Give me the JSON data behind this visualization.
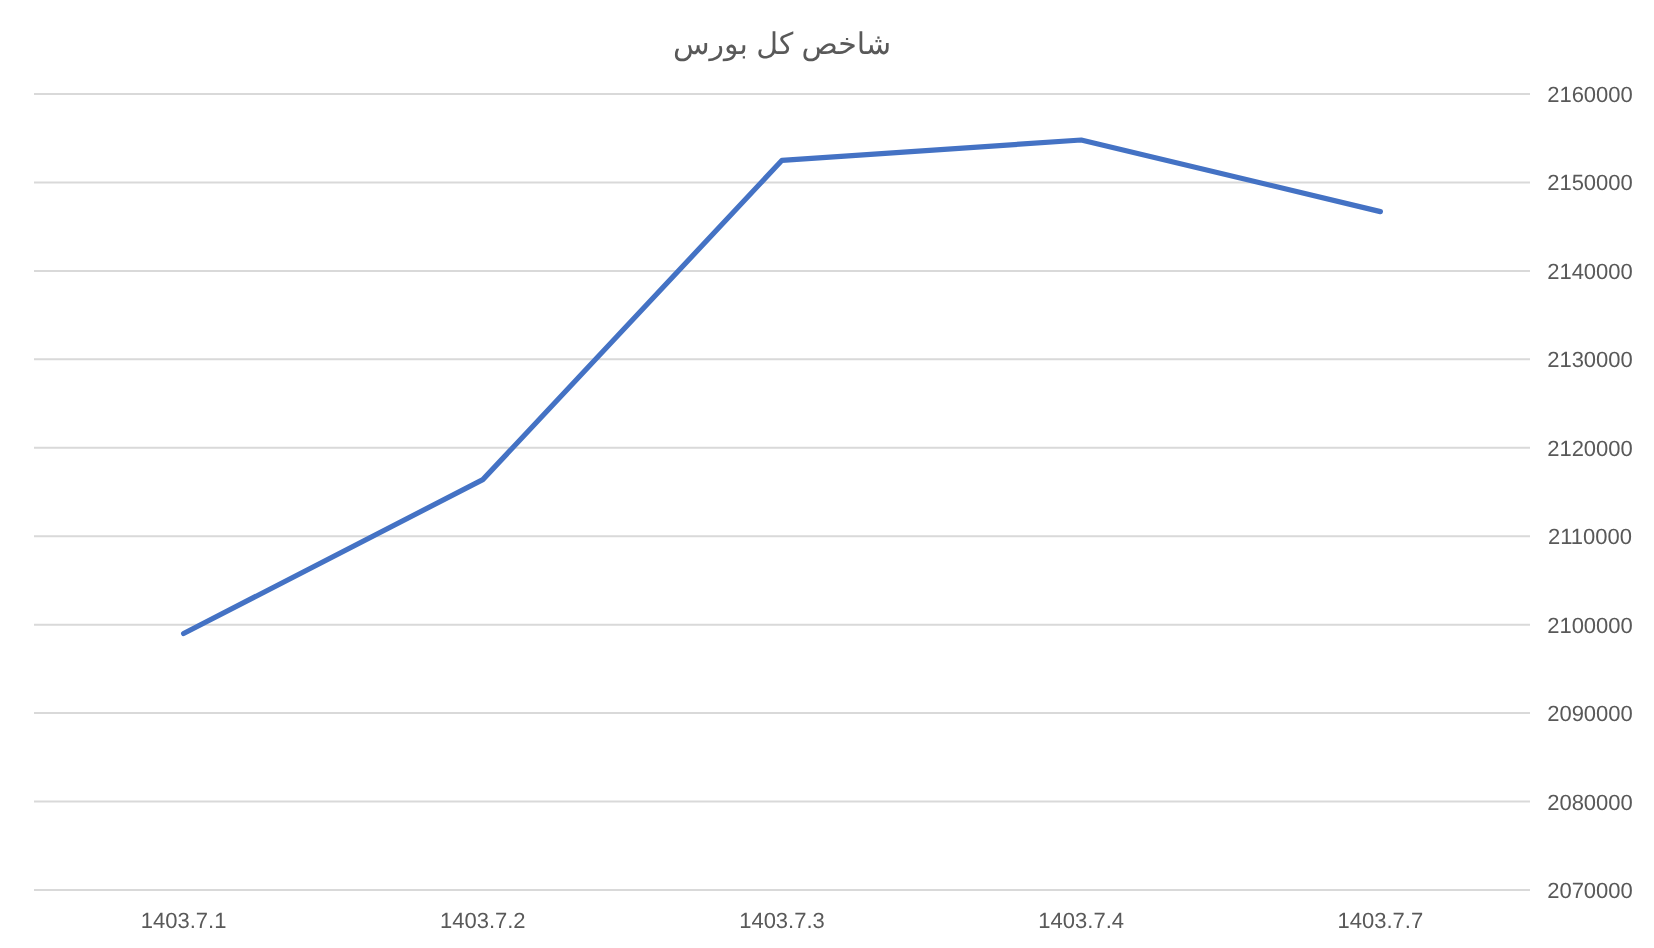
{
  "chart_data": {
    "type": "line",
    "title": "شاخص کل بورس",
    "categories": [
      "1403.7.1",
      "1403.7.2",
      "1403.7.3",
      "1403.7.4",
      "1403.7.7"
    ],
    "series": [
      {
        "color": "#4472c4",
        "values": [
          2099000,
          2116400,
          2152500,
          2154800,
          2146700
        ]
      }
    ],
    "ylim": [
      2070000,
      2160000
    ],
    "yticks": [
      2070000,
      2080000,
      2090000,
      2100000,
      2110000,
      2120000,
      2130000,
      2140000,
      2150000,
      2160000
    ],
    "grid": "y",
    "marker": "none",
    "line_style": "solid"
  }
}
